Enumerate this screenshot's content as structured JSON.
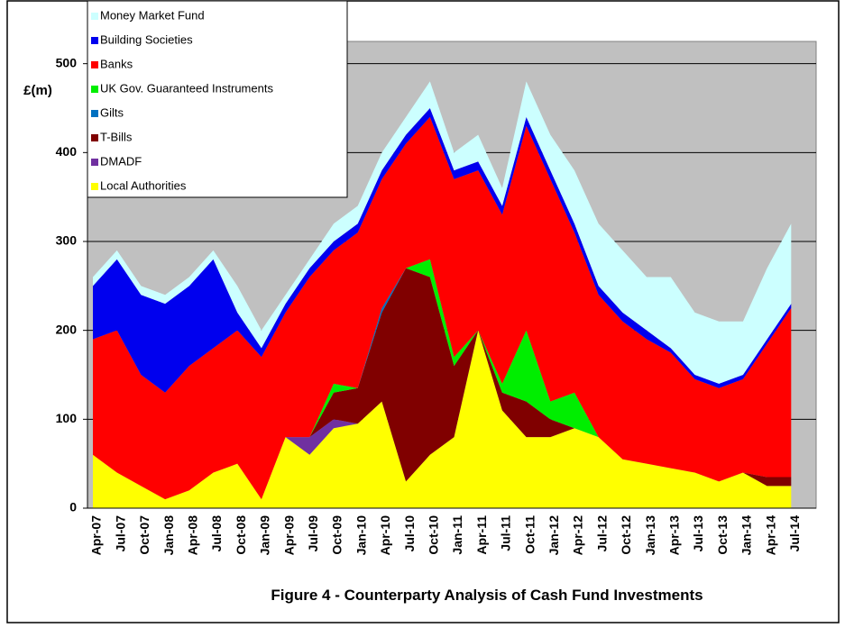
{
  "chart_data": {
    "type": "stacked-area",
    "title": "Figure 4 - Counterparty Analysis of Cash Fund Investments",
    "y_label": "£(m)",
    "categories": [
      "Apr-07",
      "Jul-07",
      "Oct-07",
      "Jan-08",
      "Apr-08",
      "Jul-08",
      "Oct-08",
      "Jan-09",
      "Apr-09",
      "Jul-09",
      "Oct-09",
      "Jan-10",
      "Apr-10",
      "Jul-10",
      "Oct-10",
      "Jan-11",
      "Apr-11",
      "Jul-11",
      "Oct-11",
      "Jan-12",
      "Apr-12",
      "Jul-12",
      "Oct-12",
      "Jan-13",
      "Apr-13",
      "Jul-13",
      "Oct-13",
      "Jan-14",
      "Apr-14",
      "Jul-14"
    ],
    "series": [
      {
        "name": "Local Authorities",
        "color": "#ffff00",
        "values": [
          60,
          40,
          25,
          10,
          20,
          40,
          50,
          10,
          80,
          60,
          90,
          95,
          120,
          30,
          60,
          80,
          200,
          110,
          80,
          80,
          90,
          80,
          55,
          50,
          45,
          40,
          30,
          40,
          25,
          25
        ]
      },
      {
        "name": "DMADF",
        "color": "#7030a0",
        "values": [
          0,
          0,
          0,
          0,
          0,
          0,
          0,
          0,
          0,
          20,
          10,
          0,
          0,
          0,
          0,
          0,
          0,
          0,
          0,
          0,
          0,
          0,
          0,
          0,
          0,
          0,
          0,
          0,
          0,
          0
        ]
      },
      {
        "name": "T-Bills",
        "color": "#800000",
        "values": [
          0,
          0,
          0,
          0,
          0,
          0,
          0,
          0,
          0,
          0,
          30,
          40,
          100,
          240,
          200,
          80,
          0,
          20,
          40,
          20,
          0,
          0,
          0,
          0,
          0,
          0,
          0,
          0,
          10,
          10
        ]
      },
      {
        "name": "Gilts",
        "color": "#0070c0",
        "values": [
          0,
          0,
          0,
          0,
          0,
          0,
          0,
          0,
          0,
          0,
          0,
          0,
          5,
          0,
          0,
          0,
          0,
          0,
          0,
          0,
          0,
          0,
          0,
          0,
          0,
          0,
          0,
          0,
          0,
          0
        ]
      },
      {
        "name": "UK Gov. Guaranteed Instruments",
        "color": "#00ee00",
        "values": [
          0,
          0,
          0,
          0,
          0,
          0,
          0,
          0,
          0,
          0,
          10,
          0,
          0,
          0,
          20,
          10,
          0,
          10,
          80,
          20,
          40,
          0,
          0,
          0,
          0,
          0,
          0,
          0,
          0,
          0
        ]
      },
      {
        "name": "Banks",
        "color": "#ff0000",
        "values": [
          130,
          160,
          125,
          120,
          140,
          140,
          150,
          160,
          140,
          180,
          150,
          175,
          145,
          140,
          160,
          200,
          180,
          190,
          230,
          250,
          180,
          160,
          155,
          140,
          130,
          105,
          105,
          105,
          150,
          190
        ]
      },
      {
        "name": "Building Societies",
        "color": "#0000ee",
        "values": [
          60,
          80,
          90,
          100,
          90,
          100,
          20,
          10,
          10,
          10,
          10,
          10,
          10,
          10,
          10,
          10,
          10,
          10,
          10,
          10,
          10,
          10,
          10,
          10,
          5,
          5,
          5,
          5,
          5,
          5
        ]
      },
      {
        "name": "Money Market Fund",
        "color": "#ccffff",
        "values": [
          10,
          10,
          10,
          10,
          10,
          10,
          30,
          20,
          10,
          10,
          20,
          20,
          20,
          20,
          30,
          20,
          30,
          20,
          40,
          40,
          60,
          70,
          70,
          60,
          80,
          70,
          70,
          60,
          80,
          90
        ]
      }
    ],
    "ylim": [
      0,
      525
    ],
    "yticks": [
      0,
      100,
      200,
      300,
      400,
      500
    ],
    "grid": true,
    "legend": "top-left"
  }
}
